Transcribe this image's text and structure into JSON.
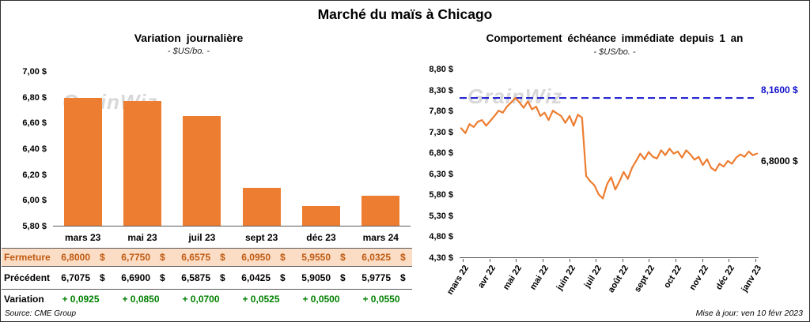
{
  "page": {
    "title": "Marché du maïs à Chicago",
    "source": "Source: CME Group",
    "updated": "Mise à jour: ven 10 févr 2023",
    "watermark": "GrainWiz"
  },
  "colors": {
    "bar": "#ED7D31",
    "line": "#ED7D31",
    "high_line": "#1212CC",
    "fermeture_bg": "#FBDCC4",
    "fermeture_text": "#C05A11",
    "variation_text": "#008000"
  },
  "chart_data": [
    {
      "type": "bar",
      "title": "Variation journalière",
      "subtitle": "- $US/bo. -",
      "categories": [
        "mars 23",
        "mai 23",
        "juil 23",
        "sept 23",
        "déc 23",
        "mars 24"
      ],
      "values": [
        6.8,
        6.775,
        6.6575,
        6.095,
        5.955,
        6.0325
      ],
      "ylim": [
        5.8,
        7.0
      ],
      "ytick_labels": [
        "7,00 $",
        "6,80 $",
        "6,60 $",
        "6,40 $",
        "6,20 $",
        "6,00 $",
        "5,80 $"
      ],
      "grid": false,
      "legend": false
    },
    {
      "type": "line",
      "title": "Comportement échéance immédiate depuis 1 an",
      "subtitle": "- $US/bo. -",
      "x_labels": [
        "mars 22",
        "avr 22",
        "mai 22",
        "mai 22",
        "juin 22",
        "juil 22",
        "août 22",
        "sept 22",
        "oct 22",
        "nov 22",
        "déc 22",
        "janv 23"
      ],
      "values": [
        7.42,
        7.3,
        7.52,
        7.45,
        7.58,
        7.62,
        7.48,
        7.6,
        7.72,
        7.85,
        7.8,
        7.95,
        8.05,
        8.16,
        8.05,
        7.92,
        8.08,
        7.88,
        7.95,
        7.72,
        7.8,
        7.62,
        7.85,
        7.78,
        7.72,
        7.55,
        7.72,
        7.48,
        7.75,
        7.68,
        6.25,
        6.12,
        6.02,
        5.8,
        5.7,
        6.05,
        6.22,
        5.92,
        6.12,
        6.35,
        6.18,
        6.45,
        6.62,
        6.8,
        6.66,
        6.84,
        6.72,
        6.68,
        6.88,
        6.76,
        6.92,
        6.8,
        6.85,
        6.7,
        6.88,
        6.78,
        6.65,
        6.72,
        6.52,
        6.66,
        6.45,
        6.38,
        6.55,
        6.48,
        6.62,
        6.55,
        6.7,
        6.78,
        6.72,
        6.85,
        6.76,
        6.8
      ],
      "ylim": [
        4.3,
        8.8
      ],
      "ytick_labels": [
        "8,80 $",
        "8,30 $",
        "7,80 $",
        "7,30 $",
        "6,80 $",
        "6,30 $",
        "5,80 $",
        "5,30 $",
        "4,80 $",
        "4,30 $"
      ],
      "high_value": 8.16,
      "high_label": "8,1600 $",
      "last_value": 6.8,
      "last_label": "6,8000 $",
      "grid": false,
      "legend": false
    }
  ],
  "table": {
    "rows": [
      {
        "label": "Fermeture",
        "suffix": "$",
        "values": [
          "6,8000",
          "6,7750",
          "6,6575",
          "6,0950",
          "5,9550",
          "6,0325"
        ]
      },
      {
        "label": "Précédent",
        "suffix": "$",
        "values": [
          "6,7075",
          "6,6900",
          "6,5875",
          "6,0425",
          "5,9050",
          "5,9775"
        ]
      },
      {
        "label": "Variation",
        "values": [
          "+ 0,0925",
          "+ 0,0850",
          "+ 0,0700",
          "+ 0,0525",
          "+ 0,0500",
          "+ 0,0550"
        ]
      }
    ]
  }
}
